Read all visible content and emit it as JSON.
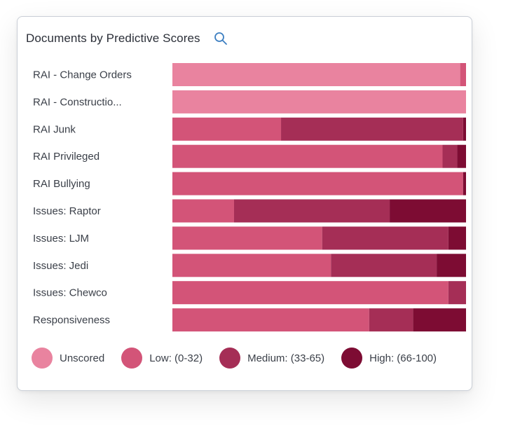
{
  "panel": {
    "title": "Documents by Predictive Scores",
    "search_icon": "search-icon"
  },
  "colors": {
    "unscored": "#e9839f",
    "low": "#d35478",
    "medium": "#a52e56",
    "high": "#7d0c33"
  },
  "chart_data": {
    "type": "bar",
    "orientation": "horizontal",
    "stacked": "percent",
    "title": "Documents by Predictive Scores",
    "xlabel": "",
    "ylabel": "",
    "grid": false,
    "legend_position": "bottom",
    "categories": [
      "RAI - Change Orders",
      "RAI - Constructio...",
      "RAI Junk",
      "RAI Privileged",
      "RAI Bullying",
      "Issues: Raptor",
      "Issues: LJM",
      "Issues: Jedi",
      "Issues: Chewco",
      "Responsiveness"
    ],
    "series": [
      {
        "name": "Unscored",
        "color": "#e9839f",
        "values": [
          98,
          100,
          0,
          0,
          0,
          0,
          0,
          0,
          0,
          0
        ]
      },
      {
        "name": "Low: (0-32)",
        "color": "#d35478",
        "values": [
          2,
          0,
          37,
          92,
          99,
          21,
          51,
          54,
          94,
          67
        ]
      },
      {
        "name": "Medium: (33-65)",
        "color": "#a52e56",
        "values": [
          0,
          0,
          62,
          5,
          0,
          53,
          43,
          36,
          6,
          15
        ]
      },
      {
        "name": "High: (66-100)",
        "color": "#7d0c33",
        "values": [
          0,
          0,
          1,
          3,
          1,
          26,
          6,
          10,
          0,
          18
        ]
      }
    ]
  }
}
